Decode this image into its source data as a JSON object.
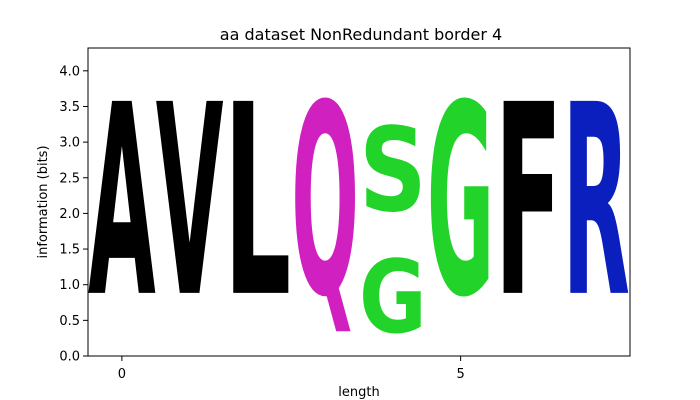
{
  "chart_data": {
    "type": "sequence_logo",
    "title": "aa dataset NonRedundant border 4",
    "xlabel": "length",
    "ylabel": "information (bits)",
    "xlim": [
      -0.5,
      7.5
    ],
    "ylim": [
      0,
      4.32
    ],
    "xticks": [
      0,
      5
    ],
    "yticks": [
      0.0,
      0.5,
      1.0,
      1.5,
      2.0,
      2.5,
      3.0,
      3.5,
      4.0
    ],
    "positions": [
      {
        "x": 0,
        "letters": [
          {
            "letter": "A",
            "height": 4.32,
            "color": "#000000"
          }
        ]
      },
      {
        "x": 1,
        "letters": [
          {
            "letter": "V",
            "height": 4.32,
            "color": "#000000"
          }
        ]
      },
      {
        "x": 2,
        "letters": [
          {
            "letter": "L",
            "height": 4.32,
            "color": "#000000"
          }
        ]
      },
      {
        "x": 3,
        "letters": [
          {
            "letter": "Q",
            "height": 4.32,
            "color": "#d020c0"
          }
        ]
      },
      {
        "x": 4,
        "letters": [
          {
            "letter": "G",
            "height": 1.65,
            "color": "#22d42a"
          },
          {
            "letter": "S",
            "height": 1.9,
            "color": "#22d42a"
          }
        ]
      },
      {
        "x": 5,
        "letters": [
          {
            "letter": "G",
            "height": 4.32,
            "color": "#22d42a"
          }
        ]
      },
      {
        "x": 6,
        "letters": [
          {
            "letter": "F",
            "height": 4.32,
            "color": "#000000"
          }
        ]
      },
      {
        "x": 7,
        "letters": [
          {
            "letter": "R",
            "height": 4.32,
            "color": "#0a1fbd"
          }
        ]
      }
    ]
  }
}
